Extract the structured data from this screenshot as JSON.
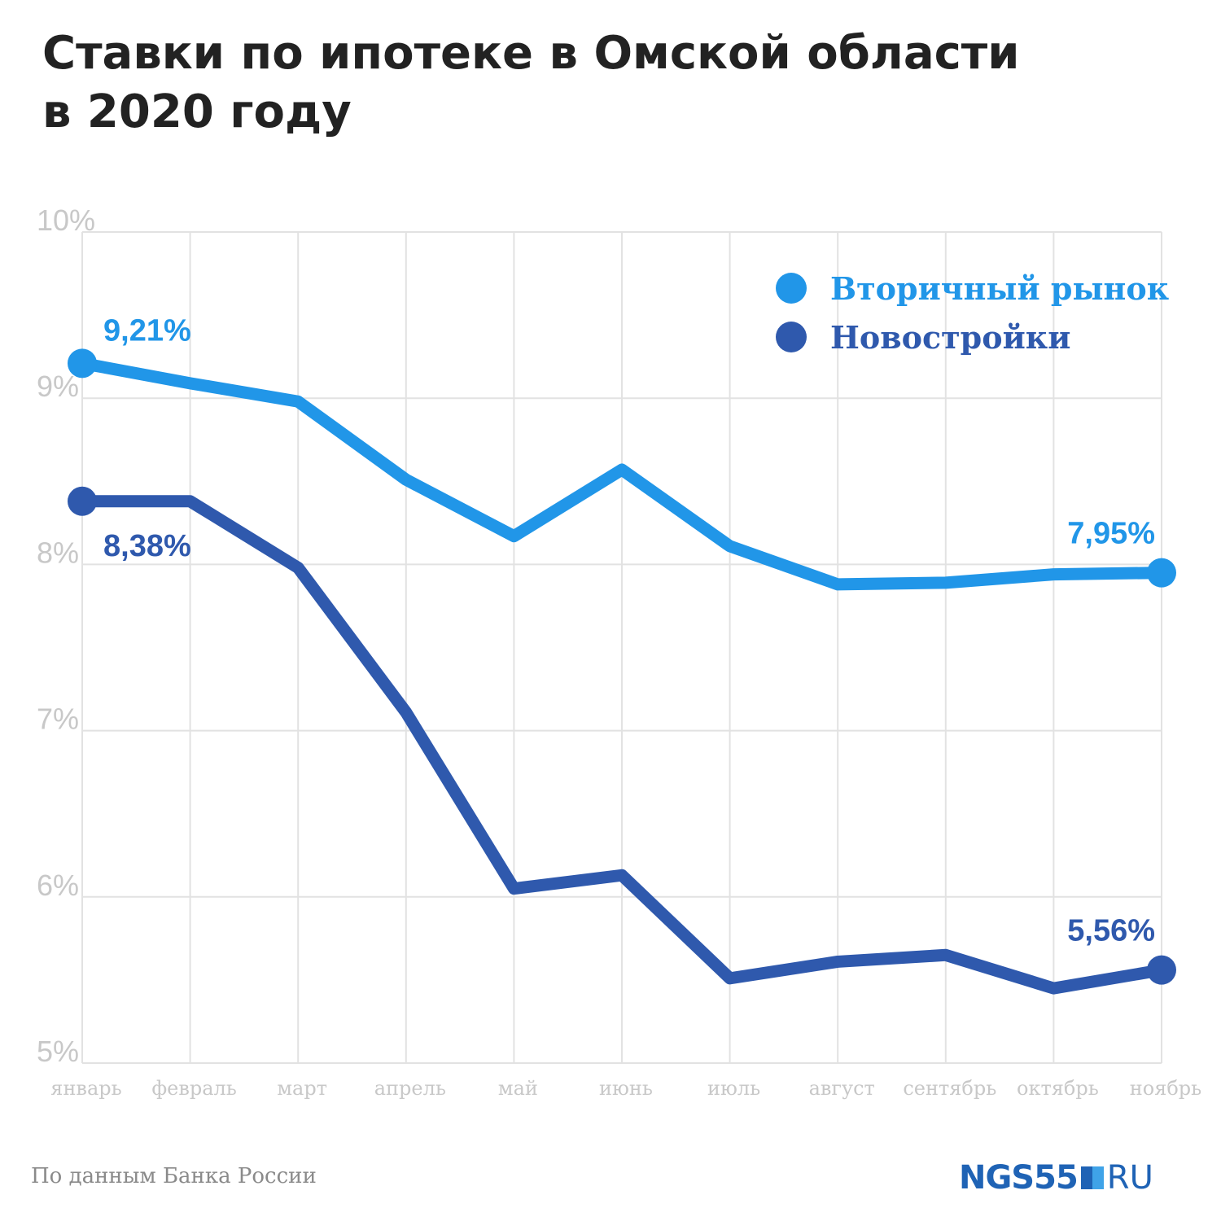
{
  "title": {
    "line1": "Ставки по ипотеке в Омской области",
    "line2": "в 2020 году"
  },
  "source": "По данным Банка России",
  "logo": {
    "brand": "NGS55",
    "tld": "RU"
  },
  "colors": {
    "secondary": "#2196e8",
    "new": "#2f59ad",
    "grid": "#e2e2e2",
    "axis_text": "#c8c8c8",
    "title": "#222222"
  },
  "chart_data": {
    "type": "line",
    "categories": [
      "январь",
      "февраль",
      "март",
      "апрель",
      "май",
      "июнь",
      "июль",
      "август",
      "сентябрь",
      "октябрь",
      "ноябрь"
    ],
    "ylim": [
      5,
      10
    ],
    "yticks": [
      10,
      9,
      8,
      7,
      6,
      5
    ],
    "ytick_labels": [
      "10%",
      "9%",
      "8%",
      "7%",
      "6%",
      "5%"
    ],
    "grid": true,
    "legend_position": "top-right",
    "series": [
      {
        "name": "Вторичный рынок",
        "color": "#2196e8",
        "values": [
          9.21,
          9.09,
          8.98,
          8.51,
          8.17,
          8.57,
          8.11,
          7.88,
          7.89,
          7.94,
          7.95
        ],
        "labels": [
          {
            "index": 0,
            "text": "9,21%"
          },
          {
            "index": 10,
            "text": "7,95%"
          }
        ]
      },
      {
        "name": "Новостройки",
        "color": "#2f59ad",
        "values": [
          8.38,
          8.38,
          7.98,
          7.11,
          6.05,
          6.13,
          5.51,
          5.61,
          5.65,
          5.45,
          5.56
        ],
        "labels": [
          {
            "index": 0,
            "text": "8,38%"
          },
          {
            "index": 10,
            "text": "5,56%"
          }
        ]
      }
    ]
  }
}
